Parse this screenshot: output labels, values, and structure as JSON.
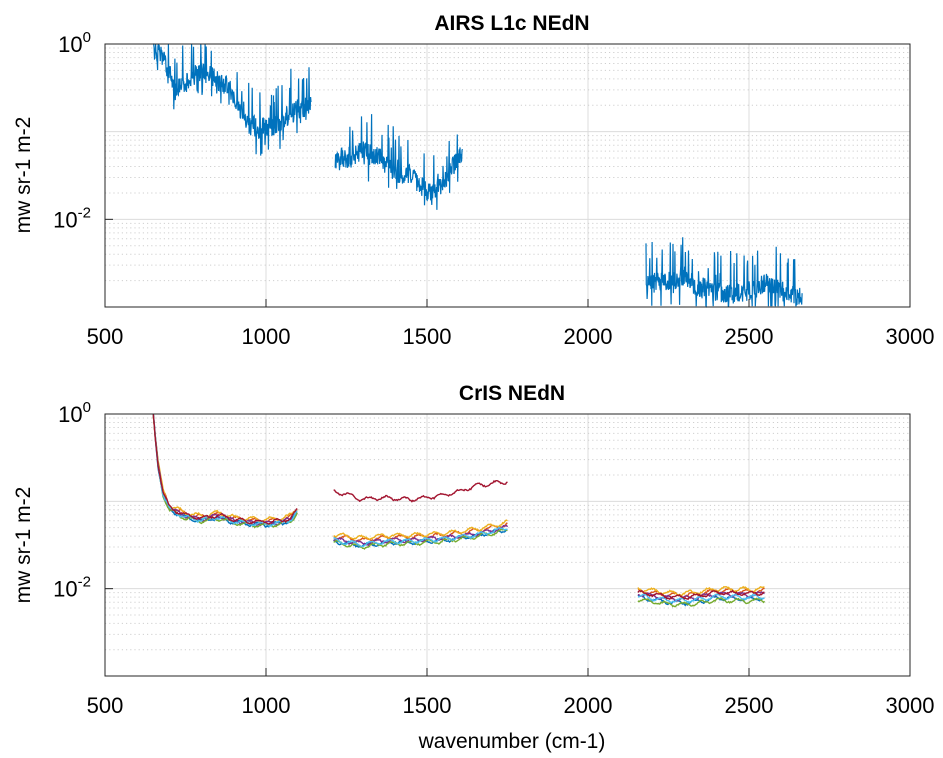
{
  "figure": {
    "xlabel": "wavenumber (cm-1)"
  },
  "chart_data": [
    {
      "type": "line",
      "title": "AIRS L1c NEdN",
      "xlabel": "",
      "ylabel": "mw sr-1 m-2",
      "xlim": [
        500,
        3000
      ],
      "ylim": [
        0.001,
        1
      ],
      "yscale": "log",
      "xticks": [
        "500",
        "1000",
        "1500",
        "2000",
        "2500",
        "3000"
      ],
      "yticks": [
        {
          "base": "10",
          "exp": "0"
        },
        {
          "base": "10",
          "exp": "-2"
        }
      ],
      "grid": "on",
      "series": [
        {
          "color": "#0072bd",
          "segments": [
            {
              "x": [
                650,
                680,
                700,
                720,
                750,
                780,
                800,
                830,
                850,
                880,
                900,
                930,
                950,
                980,
                1000,
                1030,
                1050,
                1080,
                1100,
                1140
              ],
              "y": [
                0.9,
                0.7,
                0.45,
                0.32,
                0.35,
                0.45,
                0.5,
                0.42,
                0.38,
                0.35,
                0.25,
                0.15,
                0.12,
                0.11,
                0.11,
                0.12,
                0.14,
                0.16,
                0.18,
                0.2
              ]
            },
            {
              "x": [
                1215,
                1250,
                1280,
                1300,
                1320,
                1350,
                1380,
                1400,
                1430,
                1450,
                1480,
                1500,
                1530,
                1560,
                1580,
                1610
              ],
              "y": [
                0.05,
                0.05,
                0.055,
                0.06,
                0.055,
                0.05,
                0.04,
                0.035,
                0.033,
                0.032,
                0.025,
                0.02,
                0.022,
                0.028,
                0.04,
                0.06
              ]
            },
            {
              "x": [
                2180,
                2220,
                2260,
                2300,
                2330,
                2370,
                2400,
                2450,
                2480,
                2520,
                2550,
                2580,
                2620,
                2665
              ],
              "y": [
                0.0019,
                0.0019,
                0.002,
                0.0023,
                0.0018,
                0.0016,
                0.0015,
                0.0014,
                0.0015,
                0.0016,
                0.0019,
                0.0016,
                0.0014,
                0.0013
              ]
            }
          ]
        }
      ]
    },
    {
      "type": "line",
      "title": "CrIS NEdN",
      "xlabel": "wavenumber (cm-1)",
      "ylabel": "mw sr-1 m-2",
      "xlim": [
        500,
        3000
      ],
      "ylim": [
        0.001,
        1
      ],
      "yscale": "log",
      "xticks": [
        "500",
        "1000",
        "1500",
        "2000",
        "2500",
        "3000"
      ],
      "yticks": [
        {
          "base": "10",
          "exp": "0"
        },
        {
          "base": "10",
          "exp": "-2"
        }
      ],
      "grid": "on",
      "series": [
        {
          "color": "#0072bd",
          "bands": [
            {
              "x": [
                650,
                655,
                665,
                680,
                700,
                750,
                800,
                850,
                900,
                950,
                1000,
                1050,
                1080,
                1098
              ],
              "y": [
                1.0,
                0.6,
                0.25,
                0.12,
                0.08,
                0.065,
                0.06,
                0.065,
                0.058,
                0.055,
                0.054,
                0.056,
                0.062,
                0.075
              ]
            },
            {
              "x": [
                1210,
                1250,
                1300,
                1350,
                1400,
                1450,
                1500,
                1550,
                1600,
                1650,
                1700,
                1752
              ],
              "y": [
                0.035,
                0.033,
                0.031,
                0.033,
                0.034,
                0.034,
                0.035,
                0.036,
                0.038,
                0.04,
                0.044,
                0.048
              ]
            },
            {
              "x": [
                2155,
                2200,
                2250,
                2300,
                2350,
                2400,
                2450,
                2500,
                2550
              ],
              "y": [
                0.008,
                0.0075,
                0.007,
                0.0069,
                0.0072,
                0.0078,
                0.0077,
                0.0076,
                0.0078
              ]
            }
          ]
        },
        {
          "color": "#d95319",
          "bands": [
            {
              "x": [
                650,
                655,
                665,
                680,
                700,
                750,
                800,
                850,
                900,
                950,
                1000,
                1050,
                1080,
                1098
              ],
              "y": [
                1.0,
                0.62,
                0.27,
                0.13,
                0.088,
                0.072,
                0.066,
                0.072,
                0.064,
                0.061,
                0.06,
                0.062,
                0.068,
                0.082
              ]
            },
            {
              "x": [
                1210,
                1250,
                1300,
                1350,
                1400,
                1450,
                1500,
                1550,
                1600,
                1650,
                1700,
                1752
              ],
              "y": [
                0.04,
                0.038,
                0.036,
                0.038,
                0.039,
                0.039,
                0.04,
                0.041,
                0.043,
                0.046,
                0.05,
                0.055
              ]
            },
            {
              "x": [
                2155,
                2200,
                2250,
                2300,
                2350,
                2400,
                2450,
                2500,
                2550
              ],
              "y": [
                0.0095,
                0.009,
                0.0085,
                0.0084,
                0.0088,
                0.0095,
                0.0094,
                0.0093,
                0.0096
              ]
            }
          ]
        },
        {
          "color": "#edb120",
          "bands": [
            {
              "x": [
                650,
                655,
                665,
                680,
                700,
                750,
                800,
                850,
                900,
                950,
                1000,
                1050,
                1080,
                1098
              ],
              "y": [
                1.0,
                0.63,
                0.28,
                0.135,
                0.09,
                0.074,
                0.068,
                0.074,
                0.066,
                0.063,
                0.062,
                0.064,
                0.07,
                0.085
              ]
            },
            {
              "x": [
                1210,
                1250,
                1300,
                1350,
                1400,
                1450,
                1500,
                1550,
                1600,
                1650,
                1700,
                1752
              ],
              "y": [
                0.042,
                0.04,
                0.038,
                0.04,
                0.041,
                0.041,
                0.042,
                0.043,
                0.045,
                0.048,
                0.052,
                0.058
              ]
            },
            {
              "x": [
                2155,
                2200,
                2250,
                2300,
                2350,
                2400,
                2450,
                2500,
                2550
              ],
              "y": [
                0.01,
                0.0095,
                0.009,
                0.0089,
                0.0093,
                0.01,
                0.0099,
                0.0098,
                0.0101
              ]
            }
          ]
        },
        {
          "color": "#7e2f8e",
          "bands": [
            {
              "x": [
                650,
                655,
                665,
                680,
                700,
                750,
                800,
                850,
                900,
                950,
                1000,
                1050,
                1080,
                1098
              ],
              "y": [
                1.0,
                0.6,
                0.26,
                0.125,
                0.083,
                0.068,
                0.062,
                0.068,
                0.06,
                0.057,
                0.056,
                0.058,
                0.064,
                0.078
              ]
            },
            {
              "x": [
                1210,
                1250,
                1300,
                1350,
                1400,
                1450,
                1500,
                1550,
                1600,
                1650,
                1700,
                1752
              ],
              "y": [
                0.037,
                0.035,
                0.033,
                0.035,
                0.036,
                0.036,
                0.037,
                0.038,
                0.04,
                0.042,
                0.046,
                0.051
              ]
            },
            {
              "x": [
                2155,
                2200,
                2250,
                2300,
                2350,
                2400,
                2450,
                2500,
                2550
              ],
              "y": [
                0.0088,
                0.0083,
                0.0078,
                0.0077,
                0.0081,
                0.0087,
                0.0086,
                0.0085,
                0.0088
              ]
            }
          ]
        },
        {
          "color": "#77ac30",
          "bands": [
            {
              "x": [
                650,
                655,
                665,
                680,
                700,
                750,
                800,
                850,
                900,
                950,
                1000,
                1050,
                1080,
                1098
              ],
              "y": [
                1.0,
                0.59,
                0.25,
                0.118,
                0.079,
                0.064,
                0.059,
                0.064,
                0.057,
                0.054,
                0.053,
                0.055,
                0.061,
                0.074
              ]
            },
            {
              "x": [
                1210,
                1250,
                1300,
                1350,
                1400,
                1450,
                1500,
                1550,
                1600,
                1650,
                1700,
                1752
              ],
              "y": [
                0.034,
                0.032,
                0.03,
                0.032,
                0.033,
                0.033,
                0.034,
                0.035,
                0.037,
                0.039,
                0.043,
                0.047
              ]
            },
            {
              "x": [
                2155,
                2200,
                2250,
                2300,
                2350,
                2400,
                2450,
                2500,
                2550
              ],
              "y": [
                0.0075,
                0.0071,
                0.0067,
                0.0066,
                0.0069,
                0.0074,
                0.0073,
                0.0072,
                0.0074
              ]
            }
          ]
        },
        {
          "color": "#4dbeee",
          "bands": [
            {
              "x": [
                650,
                655,
                665,
                680,
                700,
                750,
                800,
                850,
                900,
                950,
                1000,
                1050,
                1080,
                1098
              ],
              "y": [
                1.0,
                0.6,
                0.255,
                0.122,
                0.081,
                0.066,
                0.061,
                0.066,
                0.059,
                0.056,
                0.055,
                0.057,
                0.063,
                0.076
              ]
            },
            {
              "x": [
                1210,
                1250,
                1300,
                1350,
                1400,
                1450,
                1500,
                1550,
                1600,
                1650,
                1700,
                1752
              ],
              "y": [
                0.036,
                0.034,
                0.032,
                0.034,
                0.035,
                0.035,
                0.036,
                0.037,
                0.039,
                0.041,
                0.045,
                0.05
              ]
            },
            {
              "x": [
                2155,
                2200,
                2250,
                2300,
                2350,
                2400,
                2450,
                2500,
                2550
              ],
              "y": [
                0.0083,
                0.0078,
                0.0074,
                0.0073,
                0.0076,
                0.0082,
                0.0081,
                0.008,
                0.0082
              ]
            }
          ]
        },
        {
          "color": "#a2142f",
          "bands": [
            {
              "x": [
                650,
                655,
                665,
                680,
                700,
                750,
                800,
                850,
                900,
                950,
                1000,
                1050,
                1080,
                1098
              ],
              "y": [
                1.0,
                0.61,
                0.265,
                0.128,
                0.085,
                0.07,
                0.064,
                0.07,
                0.062,
                0.059,
                0.058,
                0.06,
                0.066,
                0.08
              ]
            },
            {
              "x": [
                1210,
                1250,
                1300,
                1350,
                1400,
                1450,
                1500,
                1550,
                1600,
                1650,
                1700,
                1752
              ],
              "y": [
                0.13,
                0.12,
                0.105,
                0.11,
                0.108,
                0.105,
                0.11,
                0.118,
                0.13,
                0.15,
                0.16,
                0.17
              ]
            },
            {
              "x": [
                2155,
                2200,
                2250,
                2300,
                2350,
                2400,
                2450,
                2500,
                2550
              ],
              "y": [
                0.009,
                0.0086,
                0.0081,
                0.008,
                0.0084,
                0.009,
                0.0089,
                0.0088,
                0.0091
              ]
            }
          ]
        }
      ]
    }
  ]
}
